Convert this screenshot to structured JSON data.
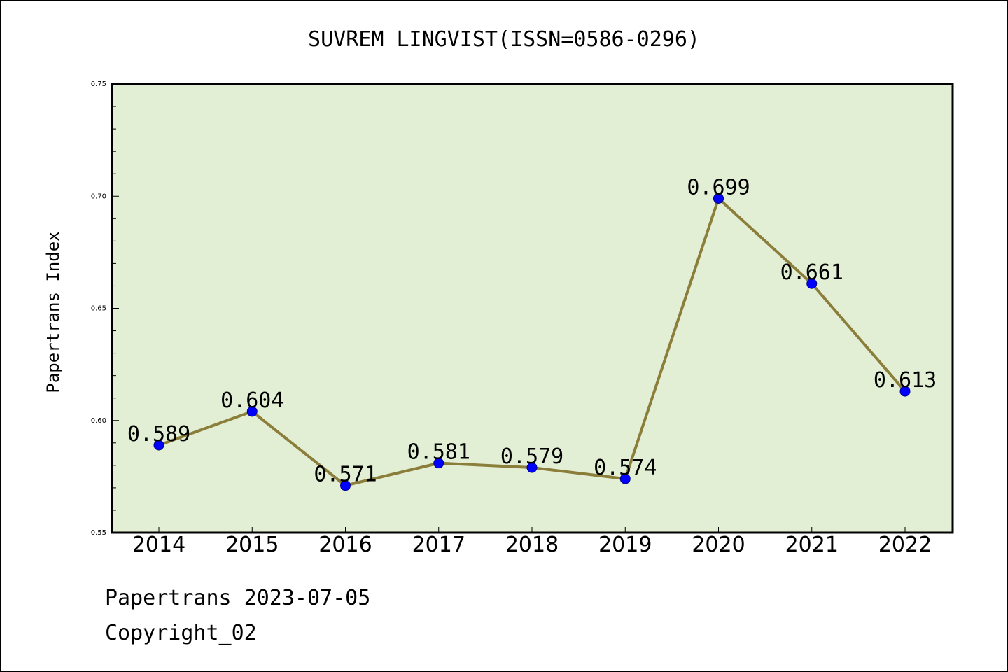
{
  "chart_data": {
    "type": "line",
    "title": "SUVREM LINGVIST(ISSN=0586-0296)",
    "xlabel": "",
    "ylabel": "Papertrans Index",
    "categories": [
      "2014",
      "2015",
      "2016",
      "2017",
      "2018",
      "2019",
      "2020",
      "2021",
      "2022"
    ],
    "values": [
      0.589,
      0.604,
      0.571,
      0.581,
      0.579,
      0.574,
      0.699,
      0.661,
      0.613
    ],
    "data_labels": [
      "0.589",
      "0.604",
      "0.571",
      "0.581",
      "0.579",
      "0.574",
      "0.699",
      "0.661",
      "0.613"
    ],
    "ylim": [
      0.55,
      0.75
    ],
    "yticks": [
      "0.55",
      "0.60",
      "0.65",
      "0.70",
      "0.75"
    ],
    "grid": false,
    "colors": {
      "plot_background": "#e2efd4",
      "line": "#8b7d3a",
      "marker": "#0000ff"
    }
  },
  "footer": {
    "source": "Papertrans 2023-07-05",
    "copyright": "Copyright_02"
  }
}
